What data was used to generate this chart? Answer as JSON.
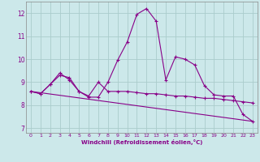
{
  "xlabel": "Windchill (Refroidissement éolien,°C)",
  "background_color": "#cce8ea",
  "grid_color": "#aacccc",
  "line_color": "#880088",
  "xlim": [
    -0.5,
    23.5
  ],
  "ylim": [
    6.8,
    12.5
  ],
  "yticks": [
    7,
    8,
    9,
    10,
    11,
    12
  ],
  "xticks": [
    0,
    1,
    2,
    3,
    4,
    5,
    6,
    7,
    8,
    9,
    10,
    11,
    12,
    13,
    14,
    15,
    16,
    17,
    18,
    19,
    20,
    21,
    22,
    23
  ],
  "series1_x": [
    0,
    1,
    2,
    3,
    4,
    5,
    6,
    7,
    8,
    9,
    10,
    11,
    12,
    13,
    14,
    15,
    16,
    17,
    18,
    19,
    20,
    21,
    22,
    23
  ],
  "series1_y": [
    8.6,
    8.5,
    8.9,
    9.3,
    9.2,
    8.6,
    8.4,
    9.0,
    8.6,
    8.6,
    8.6,
    8.55,
    8.5,
    8.5,
    8.45,
    8.4,
    8.4,
    8.35,
    8.3,
    8.3,
    8.25,
    8.2,
    8.15,
    8.1
  ],
  "series2_x": [
    0,
    1,
    2,
    3,
    4,
    5,
    6,
    7,
    8,
    9,
    10,
    11,
    12,
    13,
    14,
    15,
    16,
    17,
    18,
    19,
    20,
    21,
    22,
    23
  ],
  "series2_y": [
    8.6,
    8.5,
    8.9,
    9.4,
    9.1,
    8.6,
    8.35,
    8.35,
    9.0,
    9.95,
    10.75,
    11.95,
    12.2,
    11.65,
    9.1,
    10.1,
    10.0,
    9.75,
    8.85,
    8.45,
    8.4,
    8.4,
    7.6,
    7.3
  ],
  "series3_x": [
    0,
    23
  ],
  "series3_y": [
    8.6,
    7.3
  ]
}
